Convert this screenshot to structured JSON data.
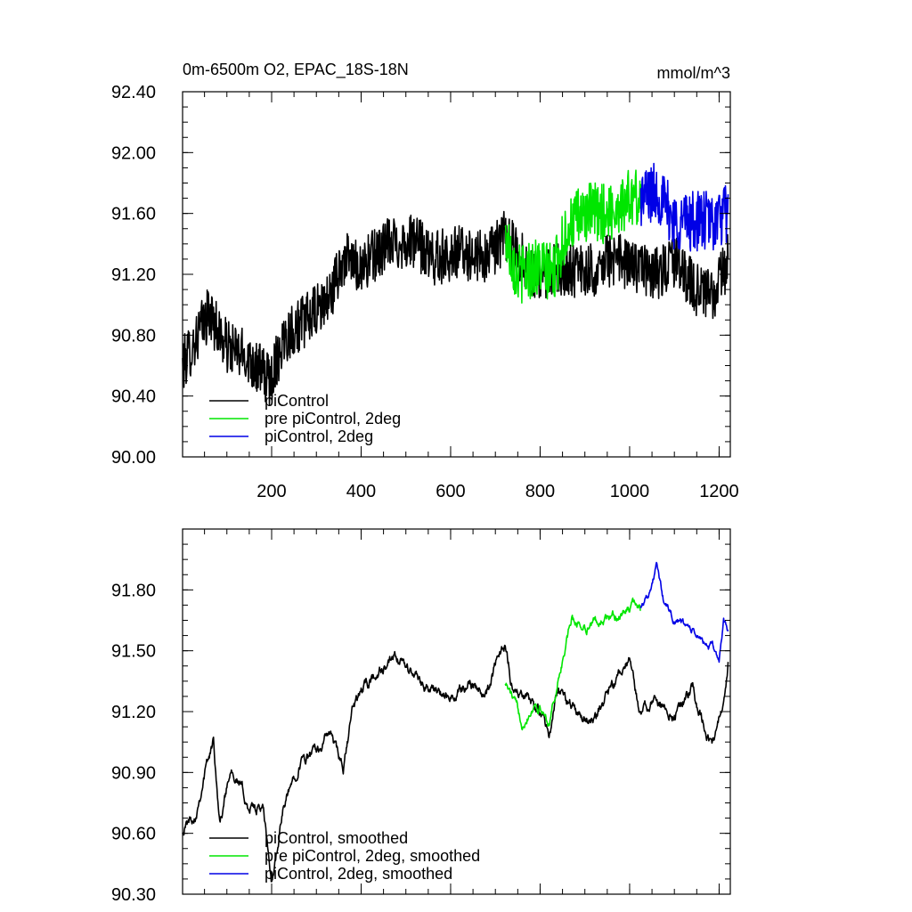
{
  "chart_data": [
    {
      "type": "line",
      "title_left": "0m-6500m O2, EPAC_18S-18N",
      "title_right": "mmol/m^3",
      "xlabel": "",
      "ylabel": "",
      "xlim": [
        1,
        1225
      ],
      "ylim": [
        90.0,
        92.4
      ],
      "x_ticks": [
        200,
        400,
        600,
        800,
        1000,
        1200
      ],
      "x_tick_labels": [
        "200",
        "400",
        "600",
        "800",
        "1000",
        "1200"
      ],
      "y_ticks": [
        90.0,
        90.4,
        90.8,
        91.2,
        91.6,
        92.0,
        92.4
      ],
      "y_tick_labels": [
        "90.00",
        "90.40",
        "90.80",
        "91.20",
        "91.60",
        "92.00",
        "92.40"
      ],
      "grid": false,
      "legend_position": "bottom-left",
      "series": [
        {
          "name": "piControl",
          "color": "#000000",
          "style": "noisy",
          "x_range": [
            1,
            1220
          ],
          "anchors": [
            [
              1,
              90.6
            ],
            [
              60,
              90.95
            ],
            [
              100,
              90.72
            ],
            [
              150,
              90.65
            ],
            [
              195,
              90.5
            ],
            [
              230,
              90.8
            ],
            [
              300,
              90.95
            ],
            [
              330,
              91.05
            ],
            [
              360,
              91.3
            ],
            [
              400,
              91.25
            ],
            [
              460,
              91.4
            ],
            [
              520,
              91.42
            ],
            [
              560,
              91.3
            ],
            [
              620,
              91.35
            ],
            [
              680,
              91.3
            ],
            [
              720,
              91.45
            ],
            [
              760,
              91.3
            ],
            [
              800,
              91.15
            ],
            [
              840,
              91.25
            ],
            [
              900,
              91.2
            ],
            [
              960,
              91.3
            ],
            [
              1020,
              91.25
            ],
            [
              1060,
              91.2
            ],
            [
              1100,
              91.28
            ],
            [
              1150,
              91.1
            ],
            [
              1190,
              91.05
            ],
            [
              1220,
              91.3
            ]
          ],
          "noise": 0.18
        },
        {
          "name": "pre piControl, 2deg",
          "color": "#00e600",
          "style": "noisy",
          "x_range": [
            722,
            1025
          ],
          "anchors": [
            [
              722,
              91.45
            ],
            [
              750,
              91.2
            ],
            [
              790,
              91.25
            ],
            [
              830,
              91.2
            ],
            [
              860,
              91.5
            ],
            [
              900,
              91.6
            ],
            [
              950,
              91.6
            ],
            [
              1000,
              91.7
            ],
            [
              1025,
              91.7
            ]
          ],
          "noise": 0.2
        },
        {
          "name": "piControl, 2deg",
          "color": "#0000e6",
          "style": "noisy",
          "x_range": [
            1025,
            1220
          ],
          "anchors": [
            [
              1025,
              91.7
            ],
            [
              1060,
              91.75
            ],
            [
              1100,
              91.55
            ],
            [
              1150,
              91.55
            ],
            [
              1190,
              91.55
            ],
            [
              1220,
              91.6
            ]
          ],
          "noise": 0.2
        }
      ]
    },
    {
      "type": "line",
      "title_left": "",
      "title_right": "",
      "xlabel": "",
      "ylabel": "",
      "xlim": [
        1,
        1225
      ],
      "ylim": [
        90.3,
        92.1
      ],
      "x_ticks": [
        200,
        400,
        600,
        800,
        1000,
        1200
      ],
      "x_tick_labels": [],
      "y_ticks": [
        90.3,
        90.6,
        90.9,
        91.2,
        91.5,
        91.8
      ],
      "y_tick_labels": [
        "90.30",
        "90.60",
        "90.90",
        "91.20",
        "91.50",
        "91.80"
      ],
      "grid": false,
      "legend_position": "bottom-left",
      "series": [
        {
          "name": "piControl, smoothed",
          "color": "#000000",
          "style": "smooth",
          "x_range": [
            1,
            1220
          ],
          "anchors": [
            [
              1,
              90.62
            ],
            [
              30,
              90.7
            ],
            [
              50,
              90.9
            ],
            [
              70,
              91.05
            ],
            [
              85,
              90.65
            ],
            [
              110,
              90.95
            ],
            [
              150,
              90.72
            ],
            [
              180,
              90.72
            ],
            [
              200,
              90.35
            ],
            [
              225,
              90.7
            ],
            [
              260,
              90.95
            ],
            [
              300,
              91.0
            ],
            [
              330,
              91.1
            ],
            [
              360,
              90.9
            ],
            [
              380,
              91.2
            ],
            [
              400,
              91.3
            ],
            [
              440,
              91.4
            ],
            [
              480,
              91.45
            ],
            [
              520,
              91.38
            ],
            [
              560,
              91.3
            ],
            [
              600,
              91.25
            ],
            [
              640,
              91.35
            ],
            [
              680,
              91.3
            ],
            [
              720,
              91.55
            ],
            [
              740,
              91.3
            ],
            [
              780,
              91.25
            ],
            [
              820,
              91.1
            ],
            [
              840,
              91.3
            ],
            [
              880,
              91.2
            ],
            [
              920,
              91.15
            ],
            [
              960,
              91.3
            ],
            [
              1000,
              91.45
            ],
            [
              1020,
              91.2
            ],
            [
              1060,
              91.25
            ],
            [
              1100,
              91.2
            ],
            [
              1140,
              91.3
            ],
            [
              1170,
              91.1
            ],
            [
              1190,
              91.05
            ],
            [
              1210,
              91.25
            ],
            [
              1220,
              91.45
            ]
          ],
          "noise": 0.06
        },
        {
          "name": "pre piControl, 2deg, smoothed",
          "color": "#00e600",
          "style": "smooth",
          "x_range": [
            722,
            1025
          ],
          "anchors": [
            [
              722,
              91.35
            ],
            [
              760,
              91.15
            ],
            [
              790,
              91.25
            ],
            [
              820,
              91.15
            ],
            [
              840,
              91.35
            ],
            [
              870,
              91.65
            ],
            [
              900,
              91.62
            ],
            [
              940,
              91.65
            ],
            [
              980,
              91.68
            ],
            [
              1010,
              91.72
            ],
            [
              1025,
              91.72
            ]
          ],
          "noise": 0.05
        },
        {
          "name": "piControl, 2deg, smoothed",
          "color": "#0000e6",
          "style": "smooth",
          "x_range": [
            1025,
            1220
          ],
          "anchors": [
            [
              1025,
              91.72
            ],
            [
              1050,
              91.82
            ],
            [
              1060,
              91.92
            ],
            [
              1075,
              91.75
            ],
            [
              1100,
              91.65
            ],
            [
              1130,
              91.62
            ],
            [
              1160,
              91.55
            ],
            [
              1190,
              91.5
            ],
            [
              1200,
              91.45
            ],
            [
              1210,
              91.65
            ],
            [
              1220,
              91.58
            ]
          ],
          "noise": 0.04
        }
      ]
    }
  ]
}
